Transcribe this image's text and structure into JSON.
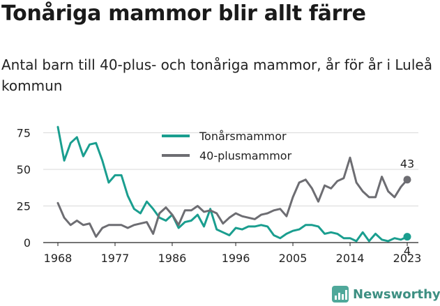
{
  "title": "Tonåriga mammor blir allt färre",
  "subtitle": "Antal barn till 40-plus- och tonåriga mammor, år för år i Luleå kommun",
  "brand": {
    "name": "Newsworthy",
    "icon": "newsworthy-logo-icon",
    "color": "#3d8f82"
  },
  "chart_data": {
    "type": "line",
    "x": [
      1968,
      1969,
      1970,
      1971,
      1972,
      1973,
      1974,
      1975,
      1976,
      1977,
      1978,
      1979,
      1980,
      1981,
      1982,
      1983,
      1984,
      1985,
      1986,
      1987,
      1988,
      1989,
      1990,
      1991,
      1992,
      1993,
      1994,
      1995,
      1996,
      1997,
      1998,
      1999,
      2000,
      2001,
      2002,
      2003,
      2004,
      2005,
      2006,
      2007,
      2008,
      2009,
      2010,
      2011,
      2012,
      2013,
      2014,
      2015,
      2016,
      2017,
      2018,
      2019,
      2020,
      2021,
      2022,
      2023
    ],
    "xticks": [
      1968,
      1977,
      1986,
      1996,
      2005,
      2014,
      2023
    ],
    "yticks": [
      0,
      25,
      50,
      75
    ],
    "ylim": [
      0,
      80
    ],
    "xlim": [
      1968,
      2023
    ],
    "grid": true,
    "legend_position": "top-center",
    "series": [
      {
        "name": "Tonårsmammor",
        "color": "#1a9e8f",
        "values": [
          79,
          56,
          68,
          72,
          59,
          67,
          68,
          56,
          41,
          46,
          46,
          32,
          23,
          20,
          28,
          23,
          17,
          15,
          19,
          10,
          14,
          15,
          19,
          11,
          23,
          9,
          7,
          5,
          10,
          9,
          11,
          11,
          12,
          11,
          5,
          3,
          6,
          8,
          9,
          12,
          12,
          11,
          6,
          7,
          6,
          3,
          3,
          1,
          7,
          1,
          6,
          2,
          1,
          3,
          2,
          4
        ],
        "end_label": "4"
      },
      {
        "name": "40-plusmammor",
        "color": "#6d6d72",
        "values": [
          27,
          17,
          12,
          15,
          12,
          13,
          4,
          10,
          12,
          12,
          12,
          10,
          12,
          13,
          14,
          6,
          20,
          24,
          19,
          12,
          22,
          22,
          25,
          21,
          22,
          20,
          13,
          17,
          20,
          18,
          17,
          16,
          19,
          20,
          22,
          23,
          18,
          31,
          41,
          43,
          37,
          28,
          39,
          37,
          42,
          44,
          58,
          41,
          35,
          31,
          31,
          45,
          35,
          31,
          38,
          43
        ],
        "end_label": "43"
      }
    ]
  }
}
